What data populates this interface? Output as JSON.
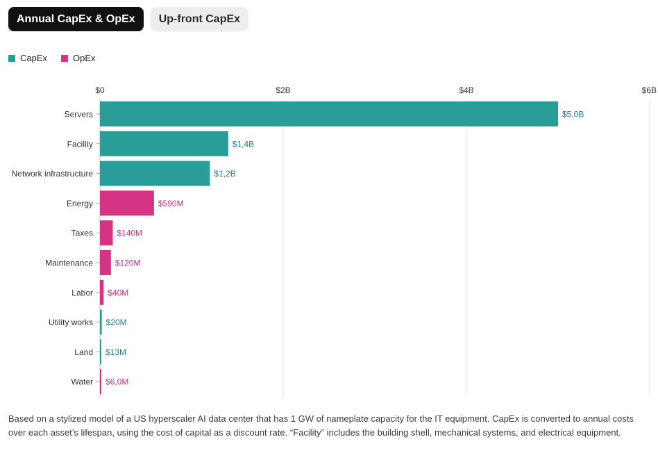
{
  "tabs": [
    {
      "label": "Annual CapEx & OpEx",
      "active": true
    },
    {
      "label": "Up-front CapEx",
      "active": false
    }
  ],
  "legend": [
    {
      "label": "CapEx",
      "color": "#2a9d98"
    },
    {
      "label": "OpEx",
      "color": "#d63384"
    }
  ],
  "colors": {
    "capex": "#2a9d98",
    "opex": "#d63384",
    "capex_label": "#1e7d79",
    "opex_label": "#c42a7a"
  },
  "chart_data": {
    "type": "bar",
    "orientation": "horizontal",
    "categories": [
      "Servers",
      "Facility",
      "Network infrastructure",
      "Energy",
      "Taxes",
      "Maintenance",
      "Labor",
      "Utility works",
      "Land",
      "Water"
    ],
    "values": [
      5.0,
      1.4,
      1.2,
      0.59,
      0.14,
      0.12,
      0.04,
      0.02,
      0.013,
      0.006
    ],
    "series_kind": [
      "CapEx",
      "CapEx",
      "CapEx",
      "OpEx",
      "OpEx",
      "OpEx",
      "OpEx",
      "CapEx",
      "CapEx",
      "OpEx"
    ],
    "value_labels": [
      "$5,0B",
      "$1,4B",
      "$1,2B",
      "$590M",
      "$140M",
      "$120M",
      "$40M",
      "$20M",
      "$13M",
      "$6,0M"
    ],
    "unit": "billion USD",
    "xlim": [
      0,
      6
    ],
    "xticks": [
      0,
      2,
      4,
      6
    ],
    "xtick_labels": [
      "$0",
      "$2B",
      "$4B",
      "$6B"
    ],
    "axis_position": "top",
    "grid": true,
    "legend_position": "top-left"
  },
  "caption": "Based on a stylized model of a US hyperscaler AI data center that has 1 GW of nameplate capacity for the IT equipment. CapEx is converted to annual costs over each asset’s lifespan, using the cost of capital as a discount rate. “Facility” includes the building shell, mechanical systems, and electrical equipment."
}
